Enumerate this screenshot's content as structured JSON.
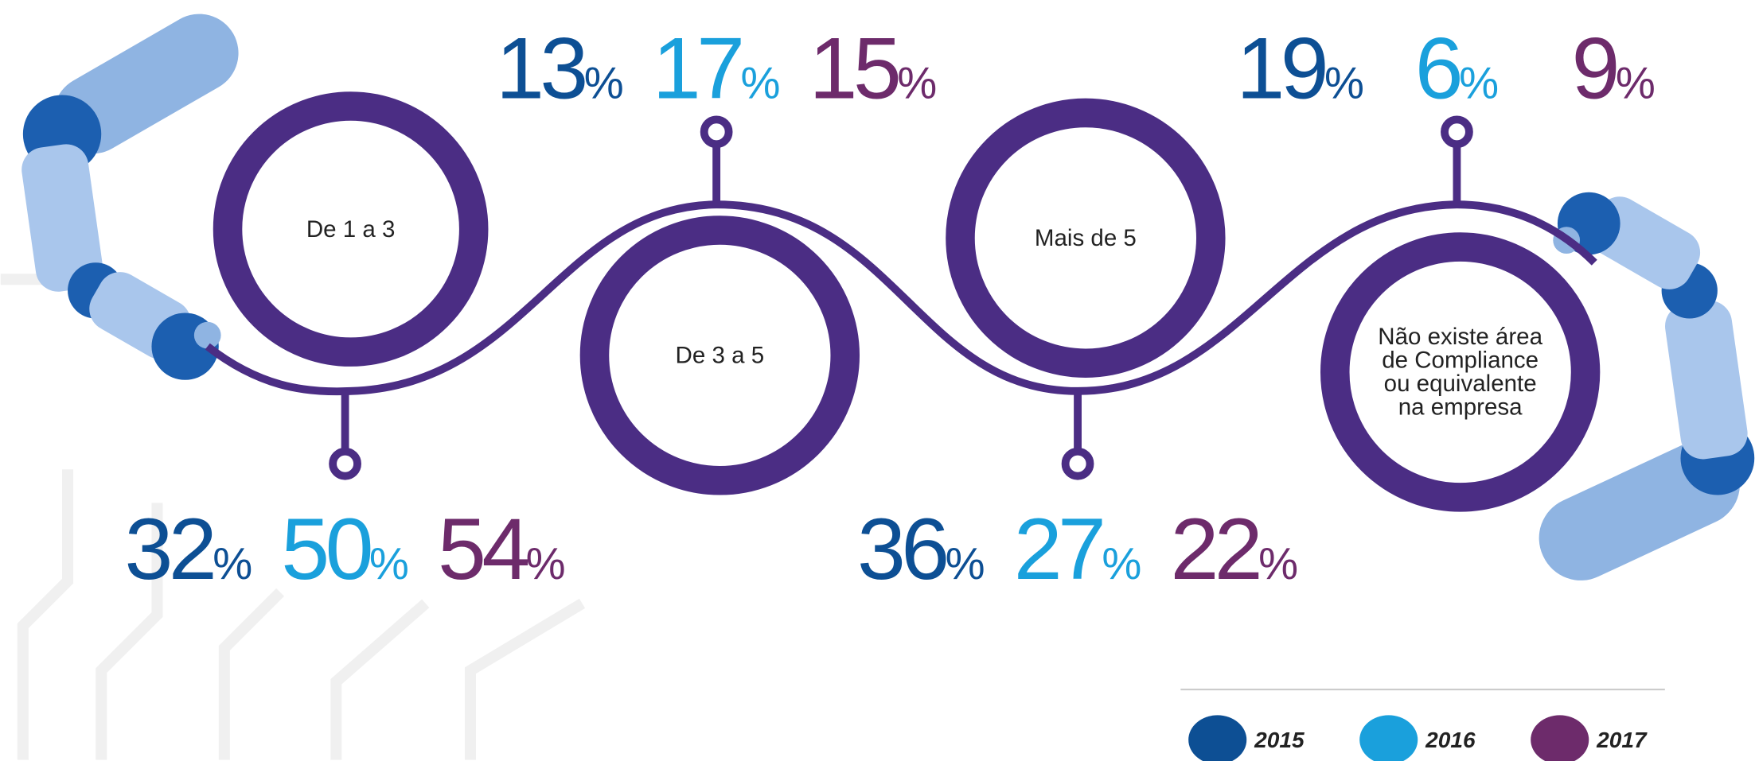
{
  "chart_data": {
    "type": "infographic",
    "categories": [
      "De 1 a 3",
      "De 3 a 5",
      "Mais de 5",
      "Não existe área de Compliance ou equivalente na empresa"
    ],
    "series": [
      {
        "name": "2015",
        "color": "#0d4f94",
        "values": [
          32,
          13,
          36,
          19
        ],
        "value_labels": [
          "32%",
          "13%",
          "36%",
          "19%"
        ]
      },
      {
        "name": "2016",
        "color": "#1aa0dc",
        "values": [
          50,
          17,
          27,
          6
        ],
        "value_labels": [
          "50%",
          "17%",
          "27%",
          "6%"
        ]
      },
      {
        "name": "2017",
        "color": "#6d2b6b",
        "values": [
          54,
          15,
          22,
          9
        ],
        "value_labels": [
          "54%",
          "15%",
          "22%",
          "9%"
        ]
      }
    ]
  }
}
